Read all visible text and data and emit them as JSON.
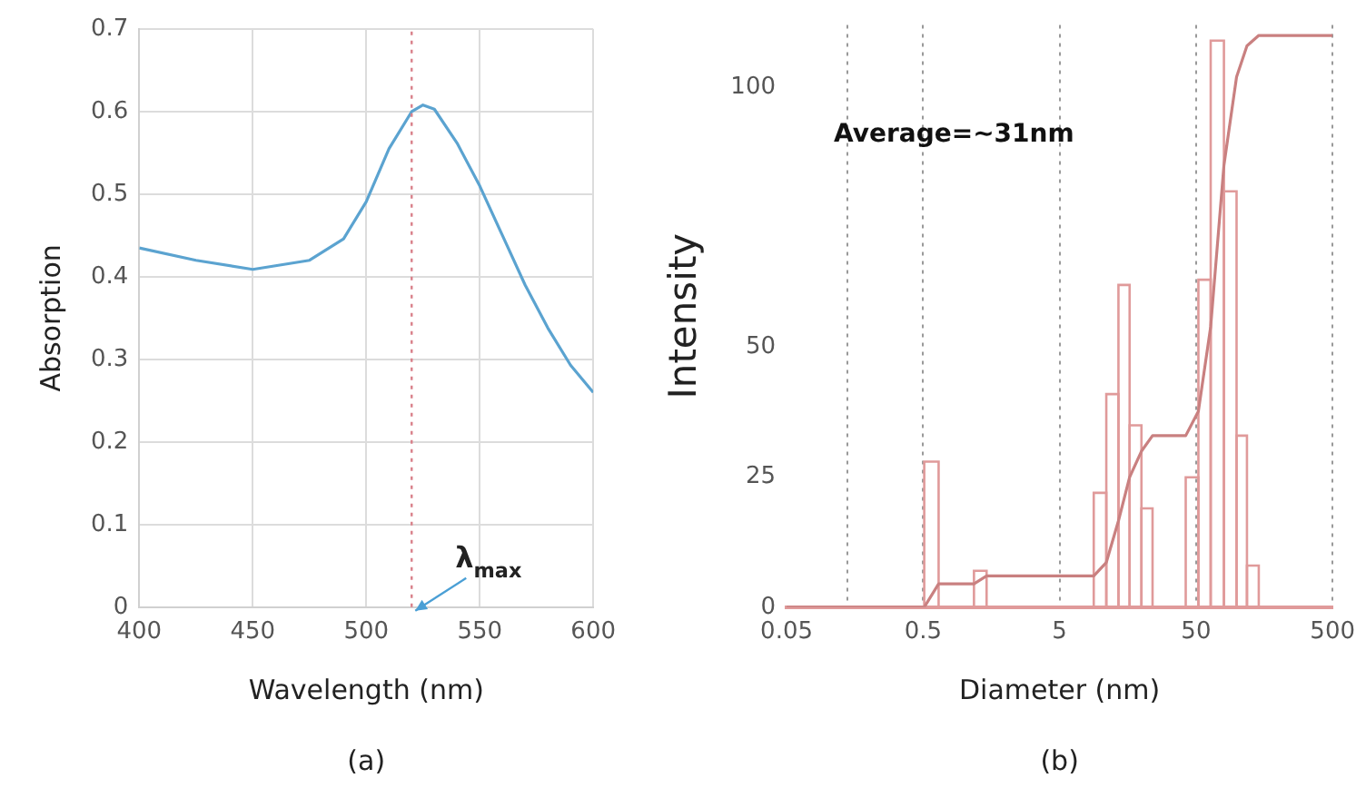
{
  "chart_data": [
    {
      "type": "line",
      "xlabel": "Wavelength (nm)",
      "ylabel": "Absorption",
      "color": "#5ba3d0",
      "marker": "none",
      "x": [
        400,
        425,
        450,
        475,
        490,
        500,
        510,
        520,
        525,
        530,
        540,
        550,
        560,
        570,
        580,
        590,
        600
      ],
      "values": [
        0.435,
        0.42,
        0.409,
        0.42,
        0.446,
        0.491,
        0.555,
        0.6,
        0.608,
        0.603,
        0.562,
        0.51,
        0.45,
        0.39,
        0.338,
        0.293,
        0.26
      ],
      "xlim": [
        400,
        600
      ],
      "xticks": [
        400,
        450,
        500,
        550,
        600
      ],
      "ylim": [
        0,
        0.7
      ],
      "yticks": [
        0,
        0.1,
        0.2,
        0.3,
        0.4,
        0.5,
        0.6,
        0.7
      ],
      "grid": true,
      "ref_lines": [
        {
          "axis": "x",
          "value": 520,
          "color": "#d9808a",
          "line_style": "dotted"
        }
      ],
      "annotations": [
        {
          "text": "λ$_{max}$",
          "x": 520,
          "y": 0
        },
        "(a)"
      ]
    },
    {
      "type": "histogram",
      "xlabel": "Diameter (nm)",
      "ylabel": "Intensity",
      "color": "#e09a9a",
      "log": "x",
      "bins": [
        0.51,
        0.65,
        1.18,
        1.46,
        8.9,
        11,
        13.5,
        16.3,
        19.9,
        24,
        42,
        52,
        64,
        80,
        99,
        118,
        144
      ],
      "values": [
        28,
        0,
        7,
        0,
        22,
        41,
        62,
        35,
        19,
        0,
        25,
        63,
        109,
        80,
        33,
        8
      ],
      "series": [
        {
          "type": "line",
          "color": "#c98080",
          "x": [
            0.05,
            0.51,
            0.65,
            1.18,
            1.46,
            8.9,
            11,
            13.5,
            16.3,
            19.9,
            24,
            42,
            52,
            64,
            80,
            99,
            118,
            144,
            500
          ],
          "values": [
            0,
            0,
            4.5,
            4.5,
            6,
            6,
            8.6,
            16.6,
            25,
            30,
            33,
            33,
            37.7,
            54,
            85,
            102,
            108,
            110,
            110
          ]
        }
      ],
      "xlim": [
        0.05,
        500
      ],
      "xticks": [
        0.05,
        {
          "value": 0.14,
          "label": null
        },
        0.5,
        5,
        50,
        500
      ],
      "ylim": [
        0,
        112
      ],
      "yticks": [
        0,
        25,
        50,
        100
      ],
      "grid": "x",
      "annotations": [
        "Average=~31nm",
        "(b)"
      ]
    }
  ]
}
